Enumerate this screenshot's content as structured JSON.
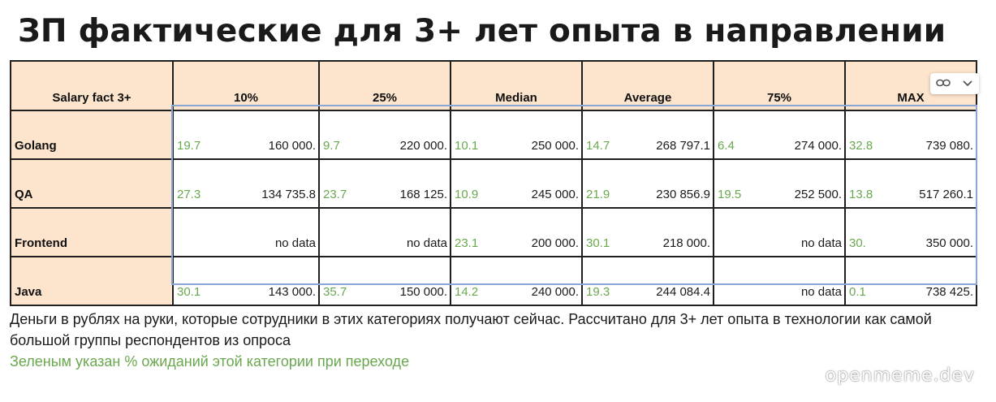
{
  "title": "ЗП фактические для 3+ лет опыта в направлении",
  "table": {
    "header_label": "Salary fact 3+",
    "columns": [
      "10%",
      "25%",
      "Median",
      "Average",
      "75%",
      "MAX"
    ],
    "rows": [
      {
        "name": "Golang",
        "cells": [
          {
            "pct": "19.7",
            "value": "160 000."
          },
          {
            "pct": "9.7",
            "value": "220 000."
          },
          {
            "pct": "10.1",
            "value": "250 000."
          },
          {
            "pct": "14.7",
            "value": "268 797.1"
          },
          {
            "pct": "6.4",
            "value": "274 000."
          },
          {
            "pct": "32.8",
            "value": "739 080."
          }
        ]
      },
      {
        "name": "QA",
        "cells": [
          {
            "pct": "27.3",
            "value": "134 735.8"
          },
          {
            "pct": "23.7",
            "value": "168 125."
          },
          {
            "pct": "10.9",
            "value": "245 000."
          },
          {
            "pct": "21.9",
            "value": "230 856.9"
          },
          {
            "pct": "19.5",
            "value": "252 500."
          },
          {
            "pct": "13.8",
            "value": "517 260.1"
          }
        ]
      },
      {
        "name": "Frontend",
        "cells": [
          {
            "pct": "",
            "value": "no data"
          },
          {
            "pct": "",
            "value": "no data"
          },
          {
            "pct": "23.1",
            "value": "200 000."
          },
          {
            "pct": "30.1",
            "value": "218 000."
          },
          {
            "pct": "",
            "value": "no data"
          },
          {
            "pct": "30.",
            "value": "350 000."
          }
        ]
      },
      {
        "name": "Java",
        "cells": [
          {
            "pct": "30.1",
            "value": "143 000."
          },
          {
            "pct": "35.7",
            "value": "150 000."
          },
          {
            "pct": "14.2",
            "value": "240 000."
          },
          {
            "pct": "19.3",
            "value": "244 084.4"
          },
          {
            "pct": "",
            "value": "no data"
          },
          {
            "pct": "0.1",
            "value": "738 425."
          }
        ]
      }
    ]
  },
  "widget": {
    "link_icon": "link-icon",
    "chevron_icon": "chevron-down-icon"
  },
  "note": "Деньги в рублях на руки, которые сотрудники в этих категориях получают сейчас. Рассчитано для 3+ лет опыта в технологии как самой большой группы респондентов из опроса",
  "note_green": "Зеленым указан % ожиданий этой категории при переходе",
  "watermark": "openmeme.dev",
  "colors": {
    "header_bg": "#fde4cc",
    "pct_green": "#6aa84f",
    "selection_blue": "#8aa6d6"
  }
}
